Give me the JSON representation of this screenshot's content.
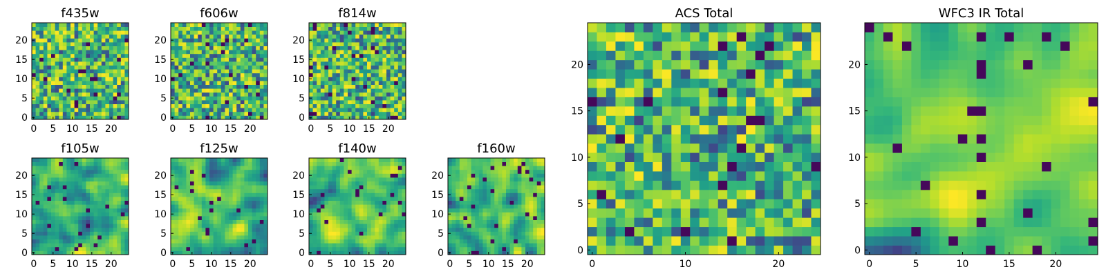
{
  "chart_data": [
    {
      "type": "heatmap",
      "title": "f435w",
      "size": 25,
      "x_ticks": [
        0,
        5,
        10,
        15,
        20
      ],
      "y_ticks": [
        0,
        5,
        10,
        15,
        20
      ],
      "colormap": "viridis",
      "seed": 11,
      "smooth": 0
    },
    {
      "type": "heatmap",
      "title": "f606w",
      "size": 25,
      "x_ticks": [
        0,
        5,
        10,
        15,
        20
      ],
      "y_ticks": [
        0,
        5,
        10,
        15,
        20
      ],
      "colormap": "viridis",
      "seed": 23,
      "smooth": 0
    },
    {
      "type": "heatmap",
      "title": "f814w",
      "size": 25,
      "x_ticks": [
        0,
        5,
        10,
        15,
        20
      ],
      "y_ticks": [
        0,
        5,
        10,
        15,
        20
      ],
      "colormap": "viridis",
      "seed": 37,
      "smooth": 0
    },
    {
      "type": "heatmap",
      "title": "f105w",
      "size": 25,
      "x_ticks": [
        0,
        5,
        10,
        15,
        20
      ],
      "y_ticks": [
        0,
        5,
        10,
        15,
        20
      ],
      "colormap": "viridis",
      "seed": 41,
      "smooth": 2
    },
    {
      "type": "heatmap",
      "title": "f125w",
      "size": 25,
      "x_ticks": [
        0,
        5,
        10,
        15,
        20
      ],
      "y_ticks": [
        0,
        5,
        10,
        15,
        20
      ],
      "colormap": "viridis",
      "seed": 53,
      "smooth": 2
    },
    {
      "type": "heatmap",
      "title": "f140w",
      "size": 25,
      "x_ticks": [
        0,
        5,
        10,
        15,
        20
      ],
      "y_ticks": [
        0,
        5,
        10,
        15,
        20
      ],
      "colormap": "viridis",
      "seed": 67,
      "smooth": 2
    },
    {
      "type": "heatmap",
      "title": "f160w",
      "size": 25,
      "x_ticks": [
        0,
        5,
        10,
        15,
        20
      ],
      "y_ticks": [
        0,
        5,
        10,
        15,
        20
      ],
      "colormap": "viridis",
      "seed": 79,
      "smooth": 2
    },
    {
      "type": "heatmap",
      "title": "ACS Total",
      "size": 25,
      "x_ticks": [
        0,
        10,
        20
      ],
      "y_ticks": [
        0,
        5,
        10,
        15,
        20
      ],
      "colormap": "viridis",
      "seed": 83,
      "smooth": 0
    },
    {
      "type": "heatmap",
      "title": "WFC3 IR Total",
      "size": 25,
      "x_ticks": [
        0,
        5,
        10,
        15,
        20
      ],
      "y_ticks": [
        0,
        5,
        10,
        15,
        20
      ],
      "colormap": "viridis",
      "seed": 97,
      "smooth": 3
    }
  ],
  "colors": {
    "axis": "#000000",
    "background": "#ffffff",
    "viridis_low": "#440154",
    "viridis_high": "#fde725"
  }
}
